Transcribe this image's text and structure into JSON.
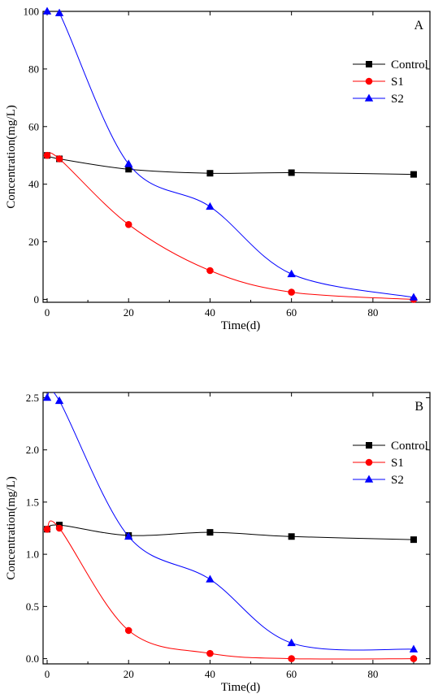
{
  "chart_data": [
    {
      "type": "line",
      "panel_label": "A",
      "xlabel": "Time(d)",
      "ylabel": "Concentration(mg/L)",
      "xlim": [
        -1,
        94
      ],
      "ylim": [
        -1,
        100
      ],
      "xticks": [
        0,
        20,
        40,
        60,
        80
      ],
      "yticks": [
        0,
        20,
        40,
        60,
        80,
        100
      ],
      "grid": false,
      "legend_position": "top-right",
      "series": [
        {
          "name": "Control",
          "color": "#000000",
          "marker": "square",
          "x": [
            0,
            3,
            20,
            40,
            60,
            90
          ],
          "y": [
            50,
            48.8,
            45.2,
            43.8,
            44,
            43.4
          ]
        },
        {
          "name": "S1",
          "color": "#ff0000",
          "marker": "circle",
          "x": [
            0,
            3,
            20,
            40,
            60,
            90
          ],
          "y": [
            50,
            48.8,
            26,
            10,
            2.5,
            0
          ]
        },
        {
          "name": "S2",
          "color": "#0000ff",
          "marker": "triangle",
          "x": [
            0,
            3,
            20,
            40,
            60,
            90
          ],
          "y": [
            100,
            99.4,
            47,
            32.2,
            8.8,
            0.7
          ]
        }
      ]
    },
    {
      "type": "line",
      "panel_label": "B",
      "xlabel": "Time(d)",
      "ylabel": "Concentration(mg/L)",
      "xlim": [
        -1,
        94
      ],
      "ylim": [
        -0.05,
        2.55
      ],
      "xticks": [
        0,
        20,
        40,
        60,
        80
      ],
      "yticks": [
        "0.0",
        "0.5",
        "1.0",
        "1.5",
        "2.0",
        "2.5"
      ],
      "grid": false,
      "legend_position": "top-right",
      "series": [
        {
          "name": "Control",
          "color": "#000000",
          "marker": "square",
          "x": [
            0,
            3,
            20,
            40,
            60,
            90
          ],
          "y": [
            1.24,
            1.28,
            1.18,
            1.21,
            1.17,
            1.14
          ]
        },
        {
          "name": "S1",
          "color": "#ff0000",
          "marker": "circle",
          "x": [
            0,
            3,
            20,
            40,
            60,
            90
          ],
          "y": [
            1.24,
            1.25,
            0.27,
            0.05,
            0.0,
            0.0
          ]
        },
        {
          "name": "S2",
          "color": "#0000ff",
          "marker": "triangle",
          "x": [
            0,
            3,
            20,
            40,
            60,
            90
          ],
          "y": [
            2.5,
            2.47,
            1.17,
            0.76,
            0.15,
            0.09
          ]
        }
      ]
    }
  ]
}
